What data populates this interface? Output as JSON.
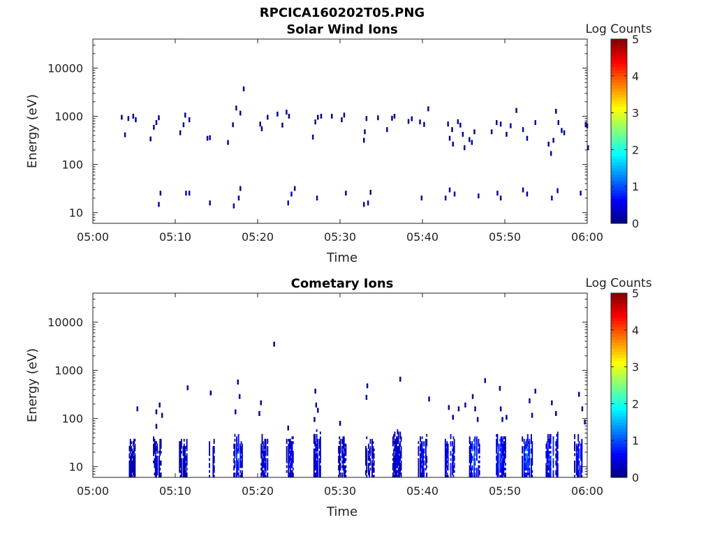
{
  "figure": {
    "filename": "RPCICA160202T05.PNG"
  },
  "colors": {
    "axis": "#222222",
    "background": "#ffffff"
  },
  "chart_data": [
    {
      "type": "heatmap",
      "title": "Solar Wind Ions",
      "xlabel": "Time",
      "ylabel": "Energy (eV)",
      "xlim": [
        "05:00",
        "06:00"
      ],
      "ylim": [
        6,
        40000
      ],
      "yscale": "log",
      "xticks": [
        "05:00",
        "05:10",
        "05:20",
        "05:30",
        "05:40",
        "05:50",
        "06:00"
      ],
      "yticks": [
        "10",
        "100",
        "1000",
        "10000"
      ],
      "colorbar": {
        "label": "Log Counts",
        "range": [
          0,
          5
        ],
        "ticks": [
          "0",
          "1",
          "2",
          "3",
          "4",
          "5"
        ],
        "colormap": "jet"
      },
      "cells": [
        [
          3.4,
          900,
          0.1
        ],
        [
          3.8,
          390,
          0.1
        ],
        [
          4.2,
          850,
          0.1
        ],
        [
          4.8,
          950,
          0.1
        ],
        [
          5.1,
          800,
          0.1
        ],
        [
          6.9,
          320,
          0.1
        ],
        [
          7.3,
          560,
          0.1
        ],
        [
          7.6,
          700,
          0.1
        ],
        [
          7.9,
          880,
          0.1
        ],
        [
          10.5,
          430,
          0.1
        ],
        [
          10.9,
          630,
          0.1
        ],
        [
          11.1,
          1000,
          0.1
        ],
        [
          11.6,
          800,
          0.1
        ],
        [
          13.8,
          330,
          0.1
        ],
        [
          14.1,
          340,
          0.1
        ],
        [
          16.3,
          270,
          0.1
        ],
        [
          16.9,
          630,
          0.1
        ],
        [
          17.3,
          1400,
          0.1
        ],
        [
          17.8,
          1100,
          0.1
        ],
        [
          18.2,
          3500,
          0.1
        ],
        [
          20.2,
          650,
          0.1
        ],
        [
          20.4,
          520,
          0.1
        ],
        [
          21.1,
          900,
          0.1
        ],
        [
          22.3,
          1050,
          0.1
        ],
        [
          22.9,
          620,
          0.1
        ],
        [
          23.4,
          1150,
          0.1
        ],
        [
          23.7,
          950,
          0.1
        ],
        [
          26.6,
          350,
          0.1
        ],
        [
          26.9,
          720,
          0.1
        ],
        [
          27.2,
          900,
          0.1
        ],
        [
          27.6,
          950,
          0.1
        ],
        [
          28.9,
          950,
          0.1
        ],
        [
          30.1,
          800,
          0.1
        ],
        [
          30.4,
          1000,
          0.1
        ],
        [
          32.8,
          300,
          0.1
        ],
        [
          32.9,
          450,
          0.1
        ],
        [
          33.1,
          850,
          0.1
        ],
        [
          34.5,
          880,
          0.1
        ],
        [
          35.6,
          500,
          0.1
        ],
        [
          36.2,
          860,
          0.1
        ],
        [
          36.5,
          950,
          0.1
        ],
        [
          38.2,
          740,
          0.1
        ],
        [
          38.6,
          840,
          0.1
        ],
        [
          39.6,
          720,
          0.1
        ],
        [
          40.1,
          640,
          0.1
        ],
        [
          40.6,
          1350,
          0.1
        ],
        [
          43.0,
          650,
          0.1
        ],
        [
          43.2,
          330,
          0.1
        ],
        [
          43.5,
          500,
          0.1
        ],
        [
          43.6,
          250,
          0.1
        ],
        [
          44.2,
          730,
          0.1
        ],
        [
          44.5,
          620,
          0.1
        ],
        [
          44.8,
          400,
          0.1
        ],
        [
          45.0,
          210,
          0.1
        ],
        [
          45.6,
          310,
          0.1
        ],
        [
          45.9,
          270,
          0.1
        ],
        [
          46.2,
          450,
          0.1
        ],
        [
          48.3,
          450,
          0.1
        ],
        [
          48.9,
          700,
          0.1
        ],
        [
          49.4,
          650,
          0.1
        ],
        [
          50.1,
          400,
          0.1
        ],
        [
          50.6,
          600,
          0.1
        ],
        [
          51.3,
          1250,
          0.1
        ],
        [
          52.1,
          500,
          0.1
        ],
        [
          52.6,
          330,
          0.1
        ],
        [
          53.6,
          700,
          0.1
        ],
        [
          55.2,
          250,
          0.1
        ],
        [
          55.5,
          160,
          0.1
        ],
        [
          55.8,
          300,
          0.1
        ],
        [
          56.1,
          1200,
          0.1
        ],
        [
          56.4,
          700,
          0.1
        ],
        [
          56.8,
          480,
          0.1
        ],
        [
          57.1,
          430,
          0.1
        ],
        [
          59.7,
          640,
          0.1
        ],
        [
          59.9,
          600,
          0.1
        ],
        [
          60.0,
          210,
          0.1
        ],
        [
          7.9,
          14,
          0.2
        ],
        [
          8.1,
          24,
          0.1
        ],
        [
          11.2,
          24,
          0.2
        ],
        [
          11.6,
          24,
          0.1
        ],
        [
          14.1,
          15,
          0.2
        ],
        [
          17.0,
          13,
          0.1
        ],
        [
          17.6,
          19,
          0.2
        ],
        [
          17.8,
          30,
          0.1
        ],
        [
          23.6,
          15,
          0.3
        ],
        [
          24.0,
          23,
          0.2
        ],
        [
          24.4,
          30,
          0.2
        ],
        [
          27.1,
          19,
          0.1
        ],
        [
          30.6,
          24,
          0.2
        ],
        [
          32.8,
          14,
          0.2
        ],
        [
          33.3,
          15,
          0.2
        ],
        [
          33.6,
          25,
          0.1
        ],
        [
          39.8,
          19,
          0.1
        ],
        [
          42.7,
          19,
          0.3
        ],
        [
          43.2,
          28,
          0.3
        ],
        [
          43.8,
          23,
          0.2
        ],
        [
          46.7,
          21,
          0.2
        ],
        [
          49.0,
          24,
          0.2
        ],
        [
          49.4,
          19,
          0.1
        ],
        [
          52.1,
          28,
          0.2
        ],
        [
          52.6,
          23,
          0.1
        ],
        [
          55.6,
          19,
          0.3
        ],
        [
          56.3,
          27,
          0.3
        ],
        [
          59.1,
          24,
          0.1
        ]
      ]
    },
    {
      "type": "heatmap",
      "title": "Cometary Ions",
      "xlabel": "Time",
      "ylabel": "Energy (eV)",
      "xlim": [
        "05:00",
        "06:00"
      ],
      "ylim": [
        6,
        40000
      ],
      "yscale": "log",
      "xticks": [
        "05:00",
        "05:10",
        "05:20",
        "05:30",
        "05:40",
        "05:50",
        "06:00"
      ],
      "yticks": [
        "10",
        "100",
        "1000",
        "10000"
      ],
      "colorbar": {
        "label": "Log Counts",
        "range": [
          0,
          5
        ],
        "ticks": [
          "0",
          "1",
          "2",
          "3",
          "4",
          "5"
        ],
        "colormap": "jet"
      },
      "cells": [
        [
          5.3,
          150,
          0.1
        ],
        [
          7.6,
          130,
          0.1
        ],
        [
          8.0,
          180,
          0.1
        ],
        [
          8.3,
          110,
          0.1
        ],
        [
          7.6,
          65,
          0.1
        ],
        [
          11.4,
          410,
          0.1
        ],
        [
          14.2,
          320,
          0.1
        ],
        [
          17.5,
          540,
          0.1
        ],
        [
          17.7,
          270,
          0.1
        ],
        [
          17.2,
          130,
          0.1
        ],
        [
          20.3,
          200,
          0.1
        ],
        [
          20.1,
          120,
          0.1
        ],
        [
          21.9,
          3300,
          0.1
        ],
        [
          23.6,
          60,
          0.1
        ],
        [
          26.9,
          350,
          0.1
        ],
        [
          27.0,
          180,
          0.1
        ],
        [
          27.2,
          140,
          0.1
        ],
        [
          26.8,
          90,
          0.1
        ],
        [
          29.9,
          75,
          0.1
        ],
        [
          33.1,
          260,
          0.1
        ],
        [
          33.2,
          450,
          0.1
        ],
        [
          37.2,
          620,
          0.1
        ],
        [
          40.7,
          240,
          0.1
        ],
        [
          43.1,
          160,
          0.1
        ],
        [
          43.6,
          100,
          0.1
        ],
        [
          44.3,
          150,
          0.1
        ],
        [
          45.1,
          180,
          0.1
        ],
        [
          46.0,
          270,
          0.1
        ],
        [
          46.3,
          150,
          0.1
        ],
        [
          46.6,
          90,
          0.1
        ],
        [
          47.5,
          580,
          0.1
        ],
        [
          49.3,
          400,
          0.1
        ],
        [
          49.4,
          150,
          0.1
        ],
        [
          49.6,
          90,
          0.1
        ],
        [
          50.1,
          100,
          0.1
        ],
        [
          52.9,
          220,
          0.1
        ],
        [
          53.2,
          110,
          0.1
        ],
        [
          53.6,
          350,
          0.1
        ],
        [
          55.6,
          200,
          0.1
        ],
        [
          56.1,
          120,
          0.1
        ],
        [
          58.9,
          300,
          0.1
        ],
        [
          59.3,
          150,
          0.1
        ],
        [
          59.6,
          80,
          0.1
        ]
      ],
      "bursts": [
        {
          "t": 4.7,
          "w": 0.9,
          "top": 35,
          "peak": 0.5
        },
        {
          "t": 7.8,
          "w": 1.0,
          "top": 40,
          "peak": 0.7
        },
        {
          "t": 11.0,
          "w": 1.1,
          "top": 40,
          "peak": 0.6
        },
        {
          "t": 14.3,
          "w": 0.9,
          "top": 40,
          "peak": 0.6
        },
        {
          "t": 17.6,
          "w": 1.1,
          "top": 45,
          "peak": 1.1
        },
        {
          "t": 20.8,
          "w": 1.1,
          "top": 40,
          "peak": 0.6
        },
        {
          "t": 24.0,
          "w": 1.1,
          "top": 40,
          "peak": 0.7
        },
        {
          "t": 27.2,
          "w": 1.1,
          "top": 50,
          "peak": 0.8
        },
        {
          "t": 30.3,
          "w": 1.1,
          "top": 40,
          "peak": 0.6
        },
        {
          "t": 33.6,
          "w": 1.1,
          "top": 40,
          "peak": 0.6
        },
        {
          "t": 36.9,
          "w": 1.1,
          "top": 55,
          "peak": 0.7
        },
        {
          "t": 40.0,
          "w": 1.1,
          "top": 40,
          "peak": 0.9
        },
        {
          "t": 43.3,
          "w": 1.2,
          "top": 45,
          "peak": 1.2
        },
        {
          "t": 46.3,
          "w": 1.3,
          "top": 45,
          "peak": 1.3
        },
        {
          "t": 49.4,
          "w": 1.4,
          "top": 45,
          "peak": 1.1
        },
        {
          "t": 52.7,
          "w": 1.3,
          "top": 45,
          "peak": 1.3
        },
        {
          "t": 55.7,
          "w": 1.5,
          "top": 45,
          "peak": 1.3
        },
        {
          "t": 59.0,
          "w": 1.2,
          "top": 40,
          "peak": 0.9
        }
      ]
    }
  ]
}
